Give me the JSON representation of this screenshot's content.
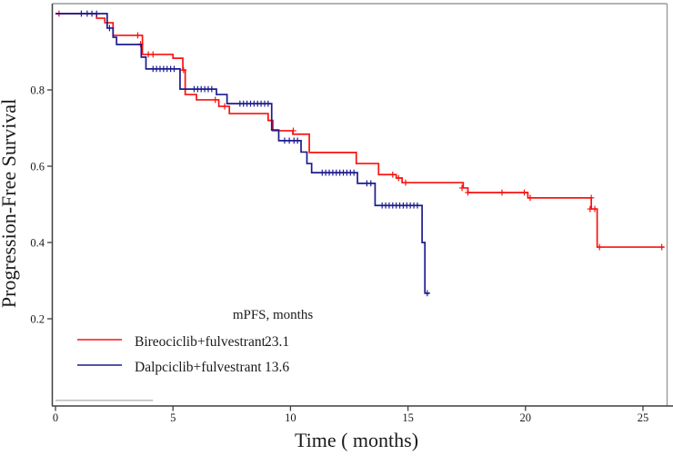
{
  "figure": {
    "kind": "kaplan-meier-plot"
  },
  "chart_data": {
    "type": "line",
    "subtype": "kaplan-meier-step",
    "title": "",
    "xlabel": "Time ( months)",
    "ylabel": "Progression-Free Survival",
    "xlim": [
      0,
      26.3
    ],
    "ylim": [
      0,
      1.02
    ],
    "grid": false,
    "xticks": [
      {
        "v": 0,
        "label": "0"
      },
      {
        "v": 5,
        "label": "5"
      },
      {
        "v": 10,
        "label": "10"
      },
      {
        "v": 15,
        "label": "15"
      },
      {
        "v": 20,
        "label": "20"
      },
      {
        "v": 25,
        "label": "25"
      }
    ],
    "yticks": [
      {
        "v": 0.2,
        "label": "0.2"
      },
      {
        "v": 0.4,
        "label": "0.4"
      },
      {
        "v": 0.6,
        "label": "0.6"
      },
      {
        "v": 0.8,
        "label": "0.8"
      }
    ],
    "legend": {
      "position": "inside-bottom-left",
      "header": "mPFS, months",
      "entries": [
        {
          "label": "Bireociclib+fulvestrant",
          "value": "23.1",
          "color": "#F8120F"
        },
        {
          "label": "Dalpciclib+fulvestrant",
          "value": "13.6",
          "color": "#1C1C8F"
        }
      ]
    },
    "series": [
      {
        "name": "Bireociclib+fulvestrant",
        "color": "#F8120F",
        "median_pfs_months": 23.1,
        "steps": [
          [
            0,
            1.0
          ],
          [
            1.75,
            0.988
          ],
          [
            2.1,
            0.976
          ],
          [
            2.45,
            0.943
          ],
          [
            3.7,
            0.893
          ],
          [
            5.0,
            0.883
          ],
          [
            5.42,
            0.852
          ],
          [
            5.52,
            0.788
          ],
          [
            6.0,
            0.774
          ],
          [
            6.95,
            0.757
          ],
          [
            7.4,
            0.738
          ],
          [
            9.05,
            0.72
          ],
          [
            9.25,
            0.693
          ],
          [
            10.1,
            0.684
          ],
          [
            10.8,
            0.636
          ],
          [
            12.8,
            0.607
          ],
          [
            13.75,
            0.578
          ],
          [
            14.5,
            0.569
          ],
          [
            14.75,
            0.557
          ],
          [
            17.35,
            0.543
          ],
          [
            17.55,
            0.531
          ],
          [
            20.1,
            0.517
          ],
          [
            22.8,
            0.488
          ],
          [
            23.05,
            0.388
          ],
          [
            25.9,
            0.388
          ]
        ],
        "censors": [
          [
            0.15,
            1.0
          ],
          [
            3.5,
            0.943
          ],
          [
            3.62,
            0.92
          ],
          [
            3.95,
            0.893
          ],
          [
            4.15,
            0.893
          ],
          [
            5.45,
            0.852
          ],
          [
            6.8,
            0.774
          ],
          [
            7.2,
            0.757
          ],
          [
            10.12,
            0.693
          ],
          [
            14.35,
            0.578
          ],
          [
            14.6,
            0.569
          ],
          [
            14.9,
            0.557
          ],
          [
            17.3,
            0.543
          ],
          [
            17.55,
            0.531
          ],
          [
            19.0,
            0.531
          ],
          [
            19.95,
            0.531
          ],
          [
            20.2,
            0.517
          ],
          [
            22.75,
            0.488
          ],
          [
            22.8,
            0.517
          ],
          [
            22.95,
            0.488
          ],
          [
            23.15,
            0.388
          ],
          [
            25.8,
            0.388
          ]
        ]
      },
      {
        "name": "Dalpciclib+fulvestrant",
        "color": "#1C1C8F",
        "median_pfs_months": 13.6,
        "steps": [
          [
            0,
            1.0
          ],
          [
            2.2,
            0.962
          ],
          [
            2.45,
            0.938
          ],
          [
            2.6,
            0.919
          ],
          [
            3.65,
            0.886
          ],
          [
            3.85,
            0.855
          ],
          [
            5.3,
            0.802
          ],
          [
            6.85,
            0.788
          ],
          [
            7.3,
            0.764
          ],
          [
            9.2,
            0.695
          ],
          [
            9.5,
            0.667
          ],
          [
            10.45,
            0.637
          ],
          [
            10.7,
            0.607
          ],
          [
            10.9,
            0.583
          ],
          [
            12.85,
            0.555
          ],
          [
            13.6,
            0.497
          ],
          [
            15.6,
            0.4
          ],
          [
            15.72,
            0.267
          ],
          [
            15.9,
            0.267
          ]
        ],
        "censors": [
          [
            1.1,
            1.0
          ],
          [
            1.35,
            1.0
          ],
          [
            1.55,
            1.0
          ],
          [
            1.75,
            1.0
          ],
          [
            2.3,
            0.962
          ],
          [
            4.15,
            0.855
          ],
          [
            4.3,
            0.855
          ],
          [
            4.45,
            0.855
          ],
          [
            4.6,
            0.855
          ],
          [
            4.75,
            0.855
          ],
          [
            4.9,
            0.855
          ],
          [
            5.05,
            0.855
          ],
          [
            5.9,
            0.802
          ],
          [
            6.05,
            0.802
          ],
          [
            6.2,
            0.802
          ],
          [
            6.35,
            0.802
          ],
          [
            6.5,
            0.802
          ],
          [
            6.65,
            0.802
          ],
          [
            7.85,
            0.764
          ],
          [
            8.0,
            0.764
          ],
          [
            8.15,
            0.764
          ],
          [
            8.3,
            0.764
          ],
          [
            8.45,
            0.764
          ],
          [
            8.6,
            0.764
          ],
          [
            8.75,
            0.764
          ],
          [
            8.9,
            0.764
          ],
          [
            9.05,
            0.764
          ],
          [
            9.75,
            0.667
          ],
          [
            9.95,
            0.667
          ],
          [
            10.15,
            0.667
          ],
          [
            10.3,
            0.667
          ],
          [
            11.35,
            0.583
          ],
          [
            11.5,
            0.583
          ],
          [
            11.65,
            0.583
          ],
          [
            11.8,
            0.583
          ],
          [
            11.95,
            0.583
          ],
          [
            12.1,
            0.583
          ],
          [
            12.25,
            0.583
          ],
          [
            12.4,
            0.583
          ],
          [
            12.55,
            0.583
          ],
          [
            12.7,
            0.583
          ],
          [
            13.25,
            0.555
          ],
          [
            13.42,
            0.555
          ],
          [
            13.9,
            0.497
          ],
          [
            14.05,
            0.497
          ],
          [
            14.2,
            0.497
          ],
          [
            14.35,
            0.497
          ],
          [
            14.5,
            0.497
          ],
          [
            14.65,
            0.497
          ],
          [
            14.8,
            0.497
          ],
          [
            14.95,
            0.497
          ],
          [
            15.1,
            0.497
          ],
          [
            15.25,
            0.497
          ],
          [
            15.4,
            0.497
          ],
          [
            15.82,
            0.267
          ]
        ]
      }
    ],
    "annotations": {
      "baseline_segment": {
        "t0": 0,
        "t1": 4.15,
        "s": -0.014,
        "color": "#ABABAB"
      }
    },
    "colors": {
      "axis": "#3F3F3F",
      "box": "#9A9A9A",
      "text": "#1a1a1a"
    }
  }
}
